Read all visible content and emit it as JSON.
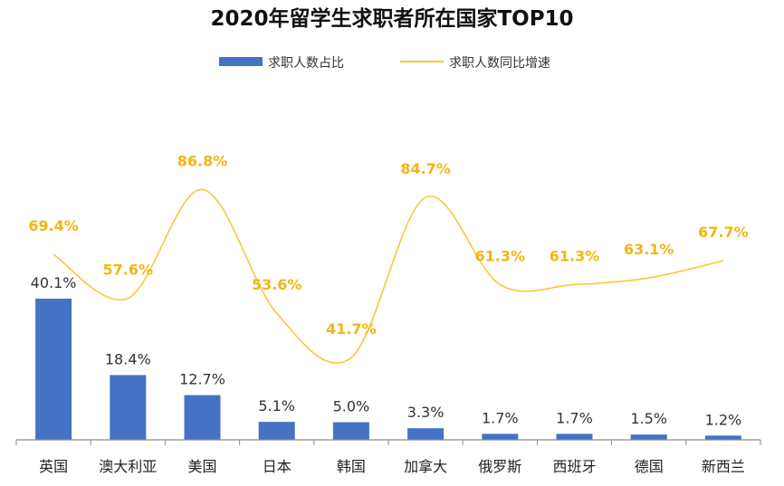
{
  "colors": {
    "bar": "#4472c4",
    "line": "#fbc63a",
    "line_label": "#f4b512",
    "axis": "#8c8c8c"
  },
  "chart_data": {
    "type": "bar",
    "title": "2020年留学生求职者所在国家TOP10",
    "legend_position": "top-center",
    "grid": false,
    "categories": [
      "英国",
      "澳大利亚",
      "美国",
      "日本",
      "韩国",
      "加拿大",
      "俄罗斯",
      "西班牙",
      "德国",
      "新西兰"
    ],
    "series": [
      {
        "name": "求职人数占比",
        "type": "bar",
        "values": [
          40.1,
          18.4,
          12.7,
          5.1,
          5.0,
          3.3,
          1.7,
          1.7,
          1.5,
          1.2
        ],
        "labels": [
          "40.1%",
          "18.4%",
          "12.7%",
          "5.1%",
          "5.0%",
          "3.3%",
          "1.7%",
          "1.7%",
          "1.5%",
          "1.2%"
        ]
      },
      {
        "name": "求职人数同比增速",
        "type": "line",
        "smooth": true,
        "values": [
          69.4,
          57.6,
          86.8,
          53.6,
          41.7,
          84.7,
          61.3,
          61.3,
          63.1,
          67.7
        ],
        "labels": [
          "69.4%",
          "57.6%",
          "86.8%",
          "53.6%",
          "41.7%",
          "84.7%",
          "61.3%",
          "61.3%",
          "63.1%",
          "67.7%"
        ]
      }
    ]
  }
}
